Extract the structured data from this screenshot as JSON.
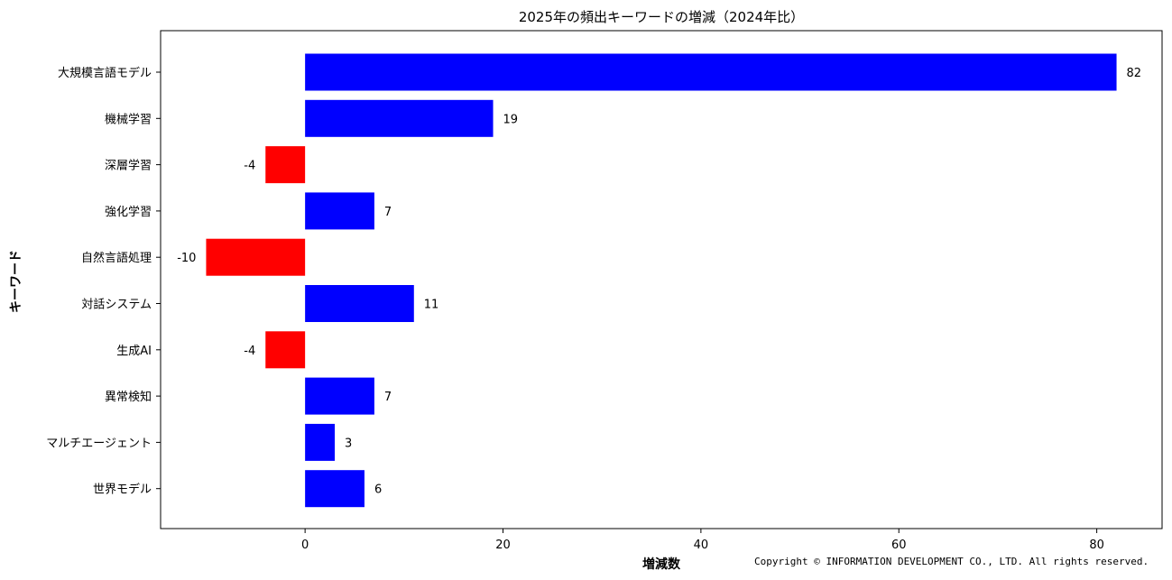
{
  "chart_data": {
    "type": "bar",
    "orientation": "horizontal",
    "title": "2025年の頻出キーワードの増減（2024年比）",
    "xlabel": "増減数",
    "ylabel": "キーワード",
    "categories": [
      "大規模言語モデル",
      "機械学習",
      "深層学習",
      "強化学習",
      "自然言語処理",
      "対話システム",
      "生成AI",
      "異常検知",
      "マルチエージェント",
      "世界モデル"
    ],
    "values": [
      82,
      19,
      -4,
      7,
      -10,
      11,
      -4,
      7,
      3,
      6
    ],
    "xlim": [
      -14.6,
      86.6
    ],
    "xticks": [
      0,
      20,
      40,
      60,
      80
    ],
    "grid": false,
    "colors": {
      "positive": "#0000ff",
      "negative": "#ff0000"
    }
  },
  "footer": {
    "copyright": "Copyright © INFORMATION DEVELOPMENT CO., LTD. All rights reserved."
  }
}
